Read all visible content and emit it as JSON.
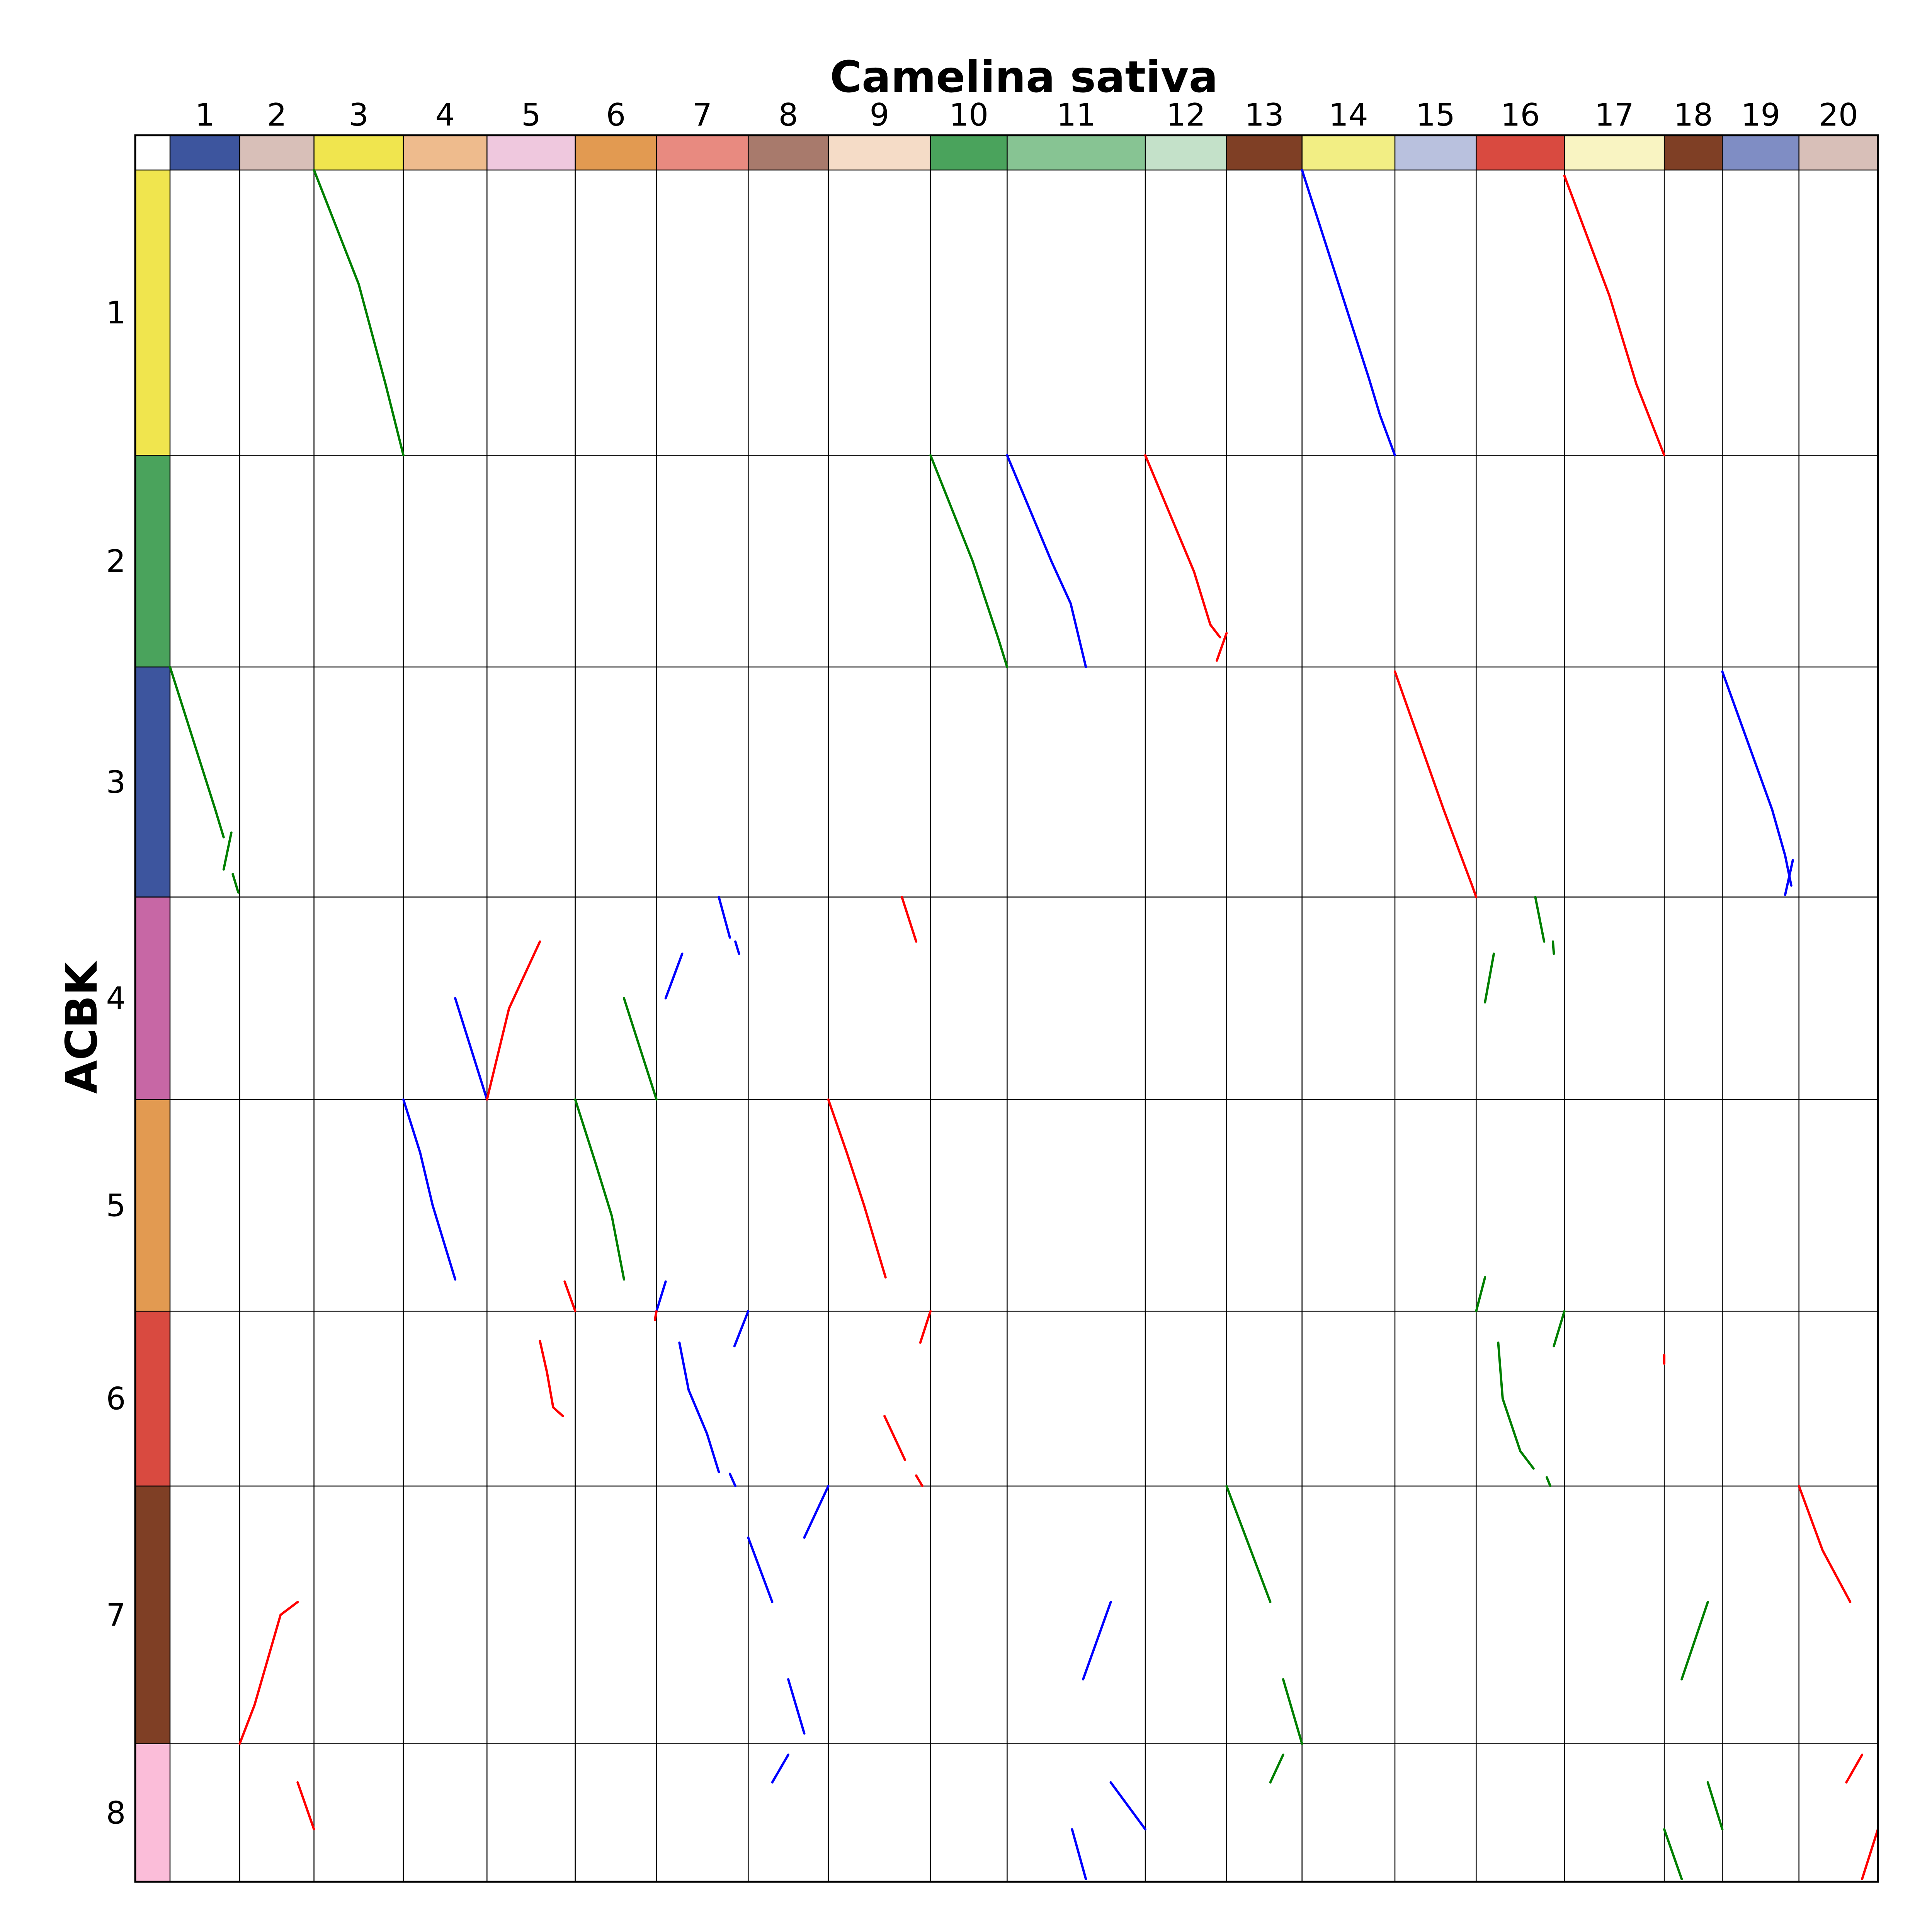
{
  "chart_data": {
    "type": "scatter",
    "title": "Camelina sativa",
    "ylabel": "ACBK",
    "x_chromosomes": [
      {
        "label": "1",
        "length": 60
      },
      {
        "label": "2",
        "length": 64
      },
      {
        "label": "3",
        "length": 77
      },
      {
        "label": "4",
        "length": 72
      },
      {
        "label": "5",
        "length": 76
      },
      {
        "label": "6",
        "length": 70
      },
      {
        "label": "7",
        "length": 79
      },
      {
        "label": "8",
        "length": 69
      },
      {
        "label": "9",
        "length": 88
      },
      {
        "label": "10",
        "length": 66
      },
      {
        "label": "11",
        "length": 119
      },
      {
        "label": "12",
        "length": 70
      },
      {
        "label": "13",
        "length": 65
      },
      {
        "label": "14",
        "length": 80
      },
      {
        "label": "15",
        "length": 70
      },
      {
        "label": "16",
        "length": 76
      },
      {
        "label": "17",
        "length": 86
      },
      {
        "label": "18",
        "length": 50
      },
      {
        "label": "19",
        "length": 66
      },
      {
        "label": "20",
        "length": 68
      }
    ],
    "y_chromosomes": [
      {
        "label": "1",
        "length": 31,
        "color": "#f0e54e"
      },
      {
        "label": "2",
        "length": 23,
        "color": "#4aa35c"
      },
      {
        "label": "3",
        "length": 25,
        "color": "#3d559e"
      },
      {
        "label": "4",
        "length": 22,
        "color": "#c767a5"
      },
      {
        "label": "5",
        "length": 23,
        "color": "#e29a51"
      },
      {
        "label": "6",
        "length": 19,
        "color": "#d94a40"
      },
      {
        "label": "7",
        "length": 28,
        "color": "#7f3f25"
      },
      {
        "label": "8",
        "length": 15,
        "color": "#fbbdd9"
      }
    ],
    "series": [
      {
        "xc": 3,
        "yc": 1,
        "color": "#007f00",
        "pts": [
          [
            0,
            0
          ],
          [
            0.5,
            0.4
          ],
          [
            0.8,
            0.75
          ],
          [
            1,
            1
          ]
        ]
      },
      {
        "xc": 14,
        "yc": 1,
        "color": "#0000ff",
        "pts": [
          [
            0,
            0
          ],
          [
            0.72,
            0.73
          ],
          [
            0.84,
            0.86
          ],
          [
            1,
            1
          ]
        ]
      },
      {
        "xc": 17,
        "yc": 1,
        "color": "#ff0000",
        "pts": [
          [
            0,
            0.02
          ],
          [
            0.45,
            0.44
          ],
          [
            0.72,
            0.75
          ],
          [
            1,
            1
          ]
        ]
      },
      {
        "xc": 10,
        "yc": 2,
        "color": "#007f00",
        "pts": [
          [
            0,
            0
          ],
          [
            0.55,
            0.5
          ],
          [
            0.88,
            0.86
          ],
          [
            1,
            1
          ]
        ]
      },
      {
        "xc": 11,
        "yc": 2,
        "color": "#0000ff",
        "pts": [
          [
            0,
            0
          ],
          [
            0.32,
            0.5
          ],
          [
            0.46,
            0.7
          ],
          [
            0.57,
            1
          ]
        ]
      },
      {
        "xc": 12,
        "yc": 2,
        "color": "#ff0000",
        "pts": [
          [
            0,
            0
          ],
          [
            0.6,
            0.55
          ],
          [
            0.8,
            0.8
          ],
          [
            0.92,
            0.86
          ]
        ]
      },
      {
        "xc": 12,
        "yc": 2,
        "color": "#ff0000",
        "pts": [
          [
            0.88,
            0.97
          ],
          [
            1,
            0.84
          ]
        ]
      },
      {
        "xc": 1,
        "yc": 3,
        "color": "#007f00",
        "pts": [
          [
            0,
            0
          ],
          [
            0.65,
            0.62
          ],
          [
            0.77,
            0.74
          ]
        ]
      },
      {
        "xc": 1,
        "yc": 3,
        "color": "#007f00",
        "pts": [
          [
            0.77,
            0.88
          ],
          [
            0.88,
            0.72
          ]
        ]
      },
      {
        "xc": 1,
        "yc": 3,
        "color": "#007f00",
        "pts": [
          [
            0.9,
            0.9
          ],
          [
            0.98,
            0.98
          ]
        ]
      },
      {
        "xc": 15,
        "yc": 3,
        "color": "#ff0000",
        "pts": [
          [
            0,
            0.02
          ],
          [
            0.6,
            0.62
          ],
          [
            0.95,
            0.95
          ],
          [
            1,
            1
          ]
        ]
      },
      {
        "xc": 19,
        "yc": 3,
        "color": "#0000ff",
        "pts": [
          [
            0,
            0.02
          ],
          [
            0.65,
            0.62
          ],
          [
            0.82,
            0.82
          ],
          [
            0.9,
            0.95
          ]
        ]
      },
      {
        "xc": 19,
        "yc": 3,
        "color": "#0000ff",
        "pts": [
          [
            0.82,
            0.99
          ],
          [
            0.92,
            0.84
          ]
        ]
      },
      {
        "xc": 4,
        "yc": 4,
        "color": "#0000ff",
        "pts": [
          [
            0.62,
            0.5
          ],
          [
            1,
            1
          ]
        ]
      },
      {
        "xc": 5,
        "yc": 4,
        "color": "#ff0000",
        "pts": [
          [
            0,
            1
          ],
          [
            0.25,
            0.55
          ],
          [
            0.6,
            0.22
          ]
        ]
      },
      {
        "xc": 6,
        "yc": 4,
        "color": "#007f00",
        "pts": [
          [
            0.6,
            0.5
          ],
          [
            0.8,
            0.75
          ],
          [
            1,
            1
          ]
        ]
      },
      {
        "xc": 7,
        "yc": 4,
        "color": "#0000ff",
        "pts": [
          [
            0.1,
            0.5
          ],
          [
            0.28,
            0.28
          ]
        ]
      },
      {
        "xc": 7,
        "yc": 4,
        "color": "#0000ff",
        "pts": [
          [
            0.68,
            0
          ],
          [
            0.8,
            0.2
          ]
        ]
      },
      {
        "xc": 7,
        "yc": 4,
        "color": "#0000ff",
        "pts": [
          [
            0.86,
            0.22
          ],
          [
            0.9,
            0.28
          ]
        ]
      },
      {
        "xc": 9,
        "yc": 4,
        "color": "#ff0000",
        "pts": [
          [
            0.72,
            0
          ],
          [
            0.86,
            0.22
          ]
        ]
      },
      {
        "xc": 16,
        "yc": 4,
        "color": "#007f00",
        "pts": [
          [
            0.1,
            0.52
          ],
          [
            0.2,
            0.28
          ]
        ]
      },
      {
        "xc": 16,
        "yc": 4,
        "color": "#007f00",
        "pts": [
          [
            0.67,
            0
          ],
          [
            0.77,
            0.22
          ]
        ]
      },
      {
        "xc": 16,
        "yc": 4,
        "color": "#007f00",
        "pts": [
          [
            0.87,
            0.22
          ],
          [
            0.88,
            0.28
          ]
        ]
      },
      {
        "xc": 4,
        "yc": 5,
        "color": "#0000ff",
        "pts": [
          [
            0,
            0
          ],
          [
            0.2,
            0.25
          ],
          [
            0.35,
            0.5
          ],
          [
            0.62,
            0.85
          ]
        ]
      },
      {
        "xc": 5,
        "yc": 5,
        "color": "#ff0000",
        "pts": [
          [
            0.88,
            0.86
          ],
          [
            1,
            1
          ]
        ]
      },
      {
        "xc": 6,
        "yc": 5,
        "color": "#007f00",
        "pts": [
          [
            0,
            0
          ],
          [
            0.25,
            0.3
          ],
          [
            0.45,
            0.55
          ],
          [
            0.6,
            0.85
          ]
        ]
      },
      {
        "xc": 7,
        "yc": 5,
        "color": "#0000ff",
        "pts": [
          [
            0,
            1
          ],
          [
            0.1,
            0.86
          ]
        ]
      },
      {
        "xc": 9,
        "yc": 5,
        "color": "#ff0000",
        "pts": [
          [
            0,
            0
          ],
          [
            0.18,
            0.25
          ],
          [
            0.35,
            0.5
          ],
          [
            0.56,
            0.84
          ]
        ]
      },
      {
        "xc": 16,
        "yc": 5,
        "color": "#007f00",
        "pts": [
          [
            0,
            1
          ],
          [
            0.1,
            0.84
          ]
        ]
      },
      {
        "xc": 5,
        "yc": 6,
        "color": "#ff0000",
        "pts": [
          [
            0.6,
            0.17
          ],
          [
            0.68,
            0.35
          ],
          [
            0.75,
            0.55
          ],
          [
            0.86,
            0.6
          ]
        ]
      },
      {
        "xc": 6,
        "yc": 6,
        "color": "#ff0000",
        "pts": [
          [
            0.98,
            0.05
          ],
          [
            1,
            0
          ]
        ]
      },
      {
        "xc": 7,
        "yc": 6,
        "color": "#0000ff",
        "pts": [
          [
            0.25,
            0.18
          ],
          [
            0.35,
            0.45
          ],
          [
            0.55,
            0.7
          ],
          [
            0.68,
            0.92
          ]
        ]
      },
      {
        "xc": 7,
        "yc": 6,
        "color": "#0000ff",
        "pts": [
          [
            0.85,
            0.2
          ],
          [
            1,
            0
          ]
        ]
      },
      {
        "xc": 7,
        "yc": 6,
        "color": "#0000ff",
        "pts": [
          [
            0.8,
            0.93
          ],
          [
            0.86,
            1
          ]
        ]
      },
      {
        "xc": 9,
        "yc": 6,
        "color": "#ff0000",
        "pts": [
          [
            0.55,
            0.6
          ],
          [
            0.75,
            0.85
          ]
        ]
      },
      {
        "xc": 9,
        "yc": 6,
        "color": "#ff0000",
        "pts": [
          [
            0.9,
            0.18
          ],
          [
            1,
            0
          ]
        ]
      },
      {
        "xc": 9,
        "yc": 6,
        "color": "#ff0000",
        "pts": [
          [
            0.86,
            0.94
          ],
          [
            0.92,
            1
          ]
        ]
      },
      {
        "xc": 16,
        "yc": 6,
        "color": "#007f00",
        "pts": [
          [
            0.25,
            0.18
          ],
          [
            0.3,
            0.5
          ],
          [
            0.5,
            0.8
          ],
          [
            0.65,
            0.9
          ]
        ]
      },
      {
        "xc": 16,
        "yc": 6,
        "color": "#007f00",
        "pts": [
          [
            0.8,
            0.95
          ],
          [
            0.84,
            1
          ]
        ]
      },
      {
        "xc": 16,
        "yc": 6,
        "color": "#007f00",
        "pts": [
          [
            0.88,
            0.2
          ],
          [
            1,
            0
          ]
        ]
      },
      {
        "xc": 17,
        "yc": 6,
        "color": "#ff0000",
        "pts": [
          [
            1,
            0.25
          ],
          [
            1,
            0.3
          ]
        ]
      },
      {
        "xc": 2,
        "yc": 7,
        "color": "#ff0000",
        "pts": [
          [
            0,
            1
          ],
          [
            0.2,
            0.85
          ],
          [
            0.35,
            0.7
          ],
          [
            0.55,
            0.5
          ],
          [
            0.78,
            0.45
          ]
        ]
      },
      {
        "xc": 8,
        "yc": 7,
        "color": "#0000ff",
        "pts": [
          [
            0,
            0.2
          ],
          [
            0.3,
            0.45
          ]
        ]
      },
      {
        "xc": 8,
        "yc": 7,
        "color": "#0000ff",
        "pts": [
          [
            0.5,
            0.75
          ],
          [
            0.7,
            0.96
          ]
        ]
      },
      {
        "xc": 8,
        "yc": 7,
        "color": "#0000ff",
        "pts": [
          [
            0.7,
            0.2
          ],
          [
            1,
            0
          ]
        ]
      },
      {
        "xc": 11,
        "yc": 7,
        "color": "#0000ff",
        "pts": [
          [
            0.55,
            0.75
          ],
          [
            0.75,
            0.45
          ]
        ]
      },
      {
        "xc": 13,
        "yc": 7,
        "color": "#007f00",
        "pts": [
          [
            0,
            0
          ],
          [
            0.58,
            0.45
          ]
        ]
      },
      {
        "xc": 13,
        "yc": 7,
        "color": "#007f00",
        "pts": [
          [
            0.75,
            0.75
          ],
          [
            1,
            1
          ]
        ]
      },
      {
        "xc": 18,
        "yc": 7,
        "color": "#007f00",
        "pts": [
          [
            0.3,
            0.75
          ],
          [
            0.75,
            0.45
          ]
        ]
      },
      {
        "xc": 20,
        "yc": 7,
        "color": "#ff0000",
        "pts": [
          [
            0,
            0
          ],
          [
            0.3,
            0.25
          ],
          [
            0.65,
            0.45
          ]
        ]
      },
      {
        "xc": 2,
        "yc": 8,
        "color": "#ff0000",
        "pts": [
          [
            0.78,
            0.28
          ],
          [
            1,
            0.62
          ]
        ]
      },
      {
        "xc": 8,
        "yc": 8,
        "color": "#0000ff",
        "pts": [
          [
            0.3,
            0.28
          ],
          [
            0.5,
            0.08
          ]
        ]
      },
      {
        "xc": 11,
        "yc": 8,
        "color": "#0000ff",
        "pts": [
          [
            0.47,
            0.62
          ],
          [
            0.57,
            0.98
          ]
        ]
      },
      {
        "xc": 11,
        "yc": 8,
        "color": "#0000ff",
        "pts": [
          [
            0.75,
            0.28
          ],
          [
            1,
            0.62
          ]
        ]
      },
      {
        "xc": 13,
        "yc": 8,
        "color": "#007f00",
        "pts": [
          [
            0.58,
            0.28
          ],
          [
            0.75,
            0.08
          ]
        ]
      },
      {
        "xc": 18,
        "yc": 8,
        "color": "#007f00",
        "pts": [
          [
            0,
            0.62
          ],
          [
            0.3,
            0.98
          ]
        ]
      },
      {
        "xc": 18,
        "yc": 8,
        "color": "#007f00",
        "pts": [
          [
            0.75,
            0.28
          ],
          [
            1,
            0.62
          ]
        ]
      },
      {
        "xc": 20,
        "yc": 8,
        "color": "#ff0000",
        "pts": [
          [
            0.6,
            0.28
          ],
          [
            0.8,
            0.08
          ]
        ]
      },
      {
        "xc": 20,
        "yc": 8,
        "color": "#ff0000",
        "pts": [
          [
            0.8,
            0.98
          ],
          [
            1,
            0.62
          ]
        ]
      }
    ]
  }
}
